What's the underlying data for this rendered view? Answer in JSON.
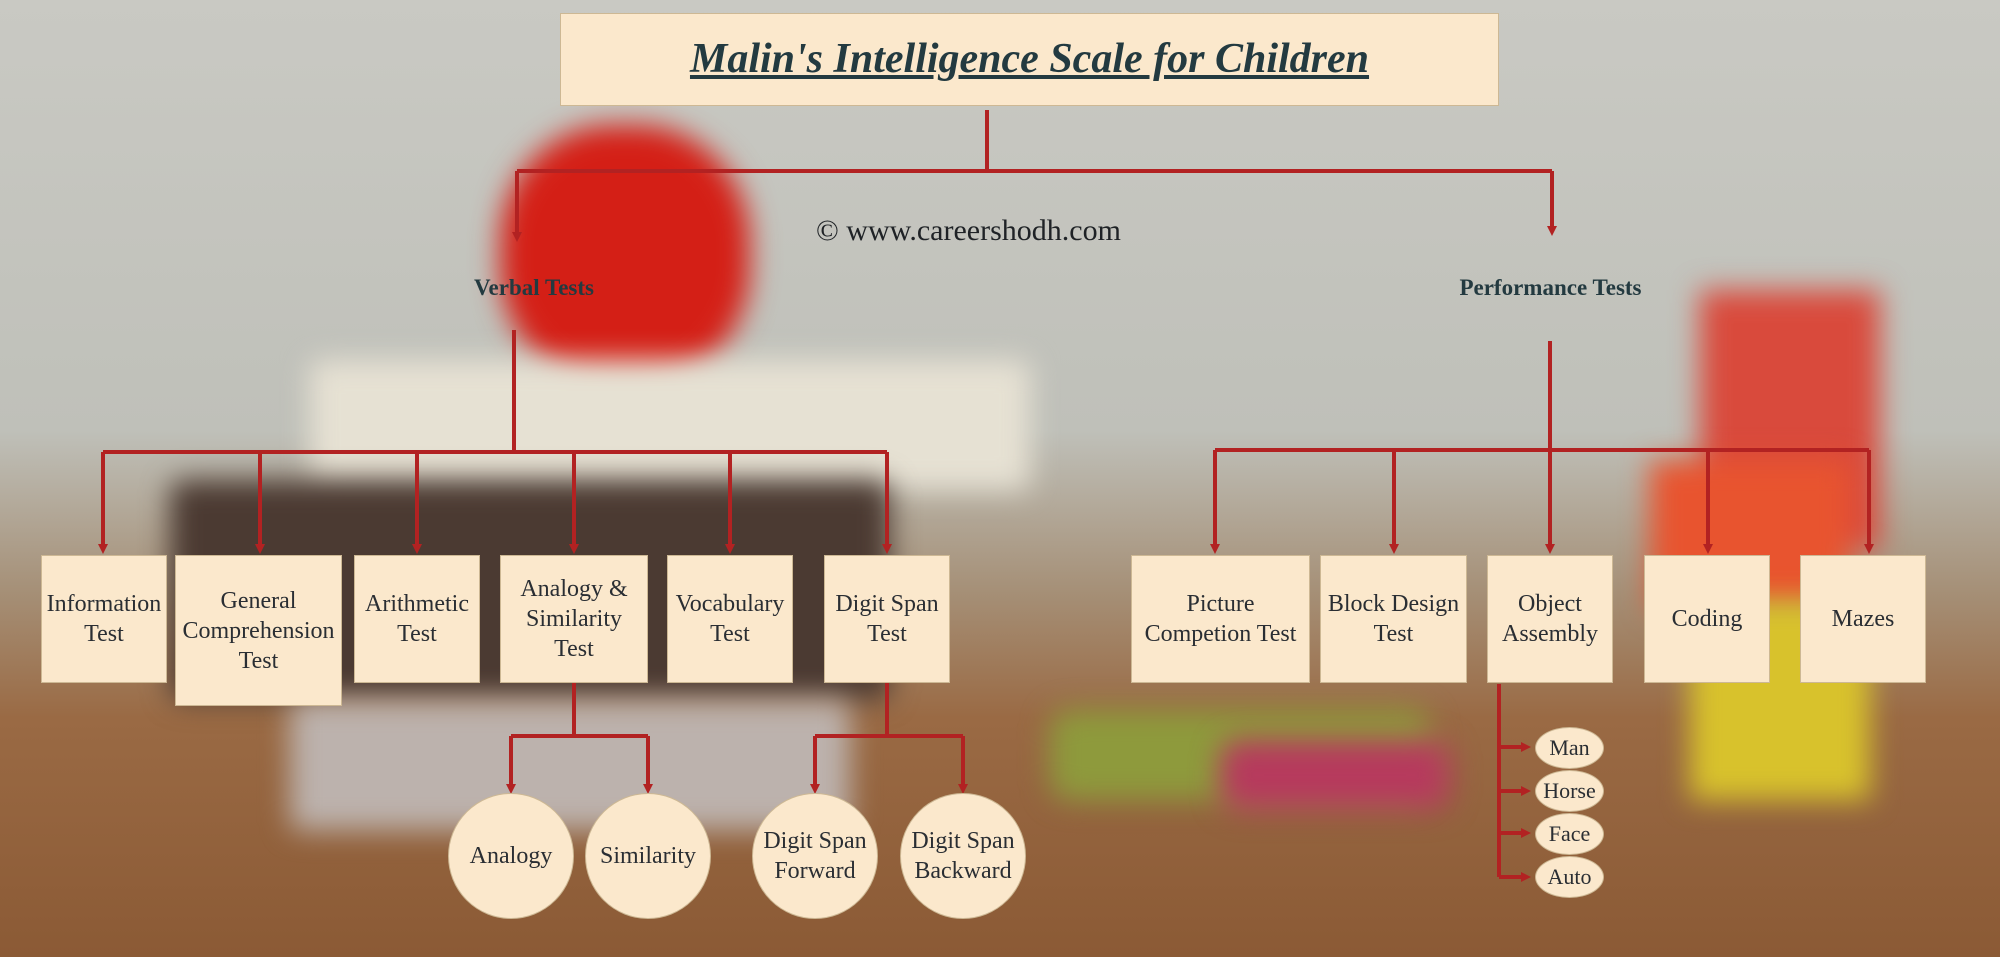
{
  "title": "Malin's Intelligence Scale for Children",
  "copyright": "© www.careershodh.com",
  "colors": {
    "box_fill": "#fbe8cc",
    "connector": "#b22222",
    "title_text": "#233a40"
  },
  "verbal": {
    "label": "Verbal Tests",
    "items": [
      {
        "label": "Information\nTest"
      },
      {
        "label": "General\nComprehension\nTest"
      },
      {
        "label": "Arithmetic\nTest"
      },
      {
        "label": "Analogy &\nSimilarity\nTest"
      },
      {
        "label": "Vocabulary\nTest"
      },
      {
        "label": "Digit Span\nTest"
      }
    ],
    "analogy_children": [
      "Analogy",
      "Similarity"
    ],
    "digit_span_children": [
      "Digit Span\nForward",
      "Digit Span\nBackward"
    ]
  },
  "performance": {
    "label": "Performance Tests",
    "items": [
      {
        "label": "Picture\nCompetion Test"
      },
      {
        "label": "Block Design\nTest"
      },
      {
        "label": "Object\nAssembly"
      },
      {
        "label": "Coding"
      },
      {
        "label": "Mazes"
      }
    ],
    "object_assembly_children": [
      "Man",
      "Horse",
      "Face",
      "Auto"
    ]
  }
}
